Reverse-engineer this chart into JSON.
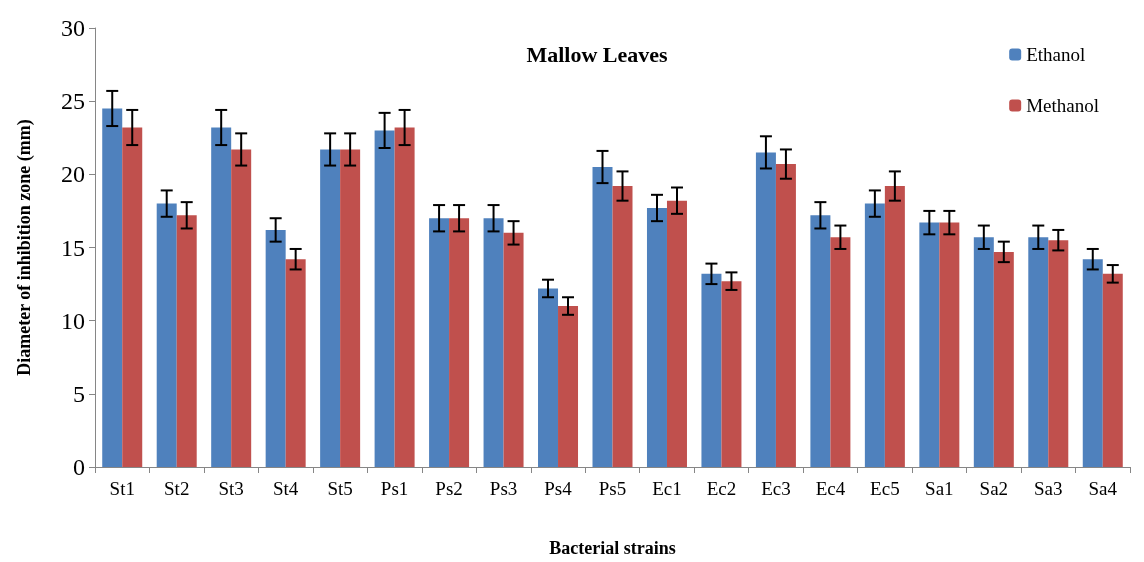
{
  "chart_data": {
    "type": "bar",
    "title": "Mallow Leaves",
    "xlabel": "Bacterial strains",
    "ylabel": "Diameter of inhibition zone (mm)",
    "categories": [
      "St1",
      "St2",
      "St3",
      "St4",
      "St5",
      "Ps1",
      "Ps2",
      "Ps3",
      "Ps4",
      "Ps5",
      "Ec1",
      "Ec2",
      "Ec3",
      "Ec4",
      "Ec5",
      "Sa1",
      "Sa2",
      "Sa3",
      "Sa4"
    ],
    "series": [
      {
        "name": "Ethanol",
        "color": "#4f81bd",
        "values": [
          24.5,
          18.0,
          23.2,
          16.2,
          21.7,
          23.0,
          17.0,
          17.0,
          12.2,
          20.5,
          17.7,
          13.2,
          21.5,
          17.2,
          18.0,
          16.7,
          15.7,
          15.7,
          14.2
        ],
        "errors": [
          1.2,
          0.9,
          1.2,
          0.8,
          1.1,
          1.2,
          0.9,
          0.9,
          0.6,
          1.1,
          0.9,
          0.7,
          1.1,
          0.9,
          0.9,
          0.8,
          0.8,
          0.8,
          0.7
        ]
      },
      {
        "name": "Methanol",
        "color": "#c0504d",
        "values": [
          23.2,
          17.2,
          21.7,
          14.2,
          21.7,
          23.2,
          17.0,
          16.0,
          11.0,
          19.2,
          18.2,
          12.7,
          20.7,
          15.7,
          19.2,
          16.7,
          14.7,
          15.5,
          13.2
        ],
        "errors": [
          1.2,
          0.9,
          1.1,
          0.7,
          1.1,
          1.2,
          0.9,
          0.8,
          0.6,
          1.0,
          0.9,
          0.6,
          1.0,
          0.8,
          1.0,
          0.8,
          0.7,
          0.7,
          0.6
        ]
      }
    ],
    "ylim": [
      0,
      30
    ],
    "yticks": [
      0,
      5,
      10,
      15,
      20,
      25,
      30
    ],
    "grid": false,
    "legend": "top right"
  }
}
